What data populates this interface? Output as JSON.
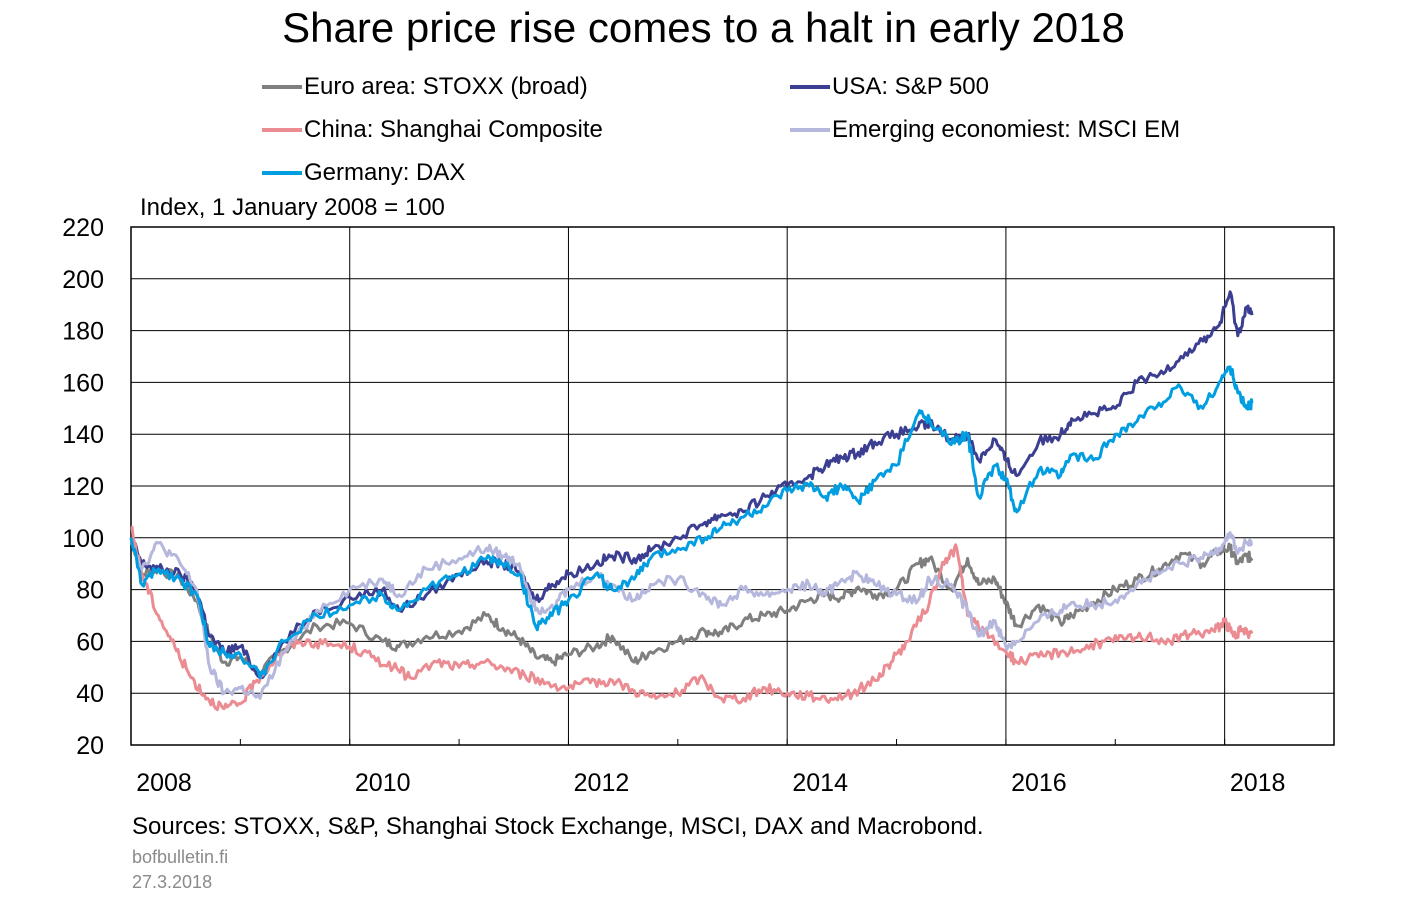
{
  "chart_data": {
    "type": "line",
    "title": "Share price rise comes to a halt in early 2018",
    "unit_label": "Index, 1 January 2008 = 100",
    "xlim": [
      2008,
      2019
    ],
    "ylim": [
      20,
      220
    ],
    "y_ticks": [
      20,
      40,
      60,
      80,
      100,
      120,
      140,
      160,
      180,
      200,
      220
    ],
    "x_tick_labels": [
      "2008",
      "2010",
      "2012",
      "2014",
      "2016",
      "2018"
    ],
    "x_tick_values": [
      2008,
      2010,
      2012,
      2014,
      2016,
      2018
    ],
    "grid": true,
    "legend_placement": "top",
    "series": [
      {
        "name": "Euro area: STOXX (broad)",
        "color": "#7f7f7f",
        "x": [
          2008.0,
          2008.1,
          2008.25,
          2008.45,
          2008.6,
          2008.72,
          2008.85,
          2009.0,
          2009.18,
          2009.4,
          2009.7,
          2010.0,
          2010.3,
          2010.45,
          2010.7,
          2011.0,
          2011.25,
          2011.4,
          2011.55,
          2011.7,
          2011.85,
          2012.0,
          2012.25,
          2012.4,
          2012.6,
          2012.75,
          2013.0,
          2013.25,
          2013.4,
          2013.6,
          2013.8,
          2014.0,
          2014.2,
          2014.35,
          2014.5,
          2014.65,
          2014.8,
          2015.0,
          2015.2,
          2015.3,
          2015.5,
          2015.65,
          2015.75,
          2015.9,
          2016.0,
          2016.1,
          2016.3,
          2016.5,
          2016.6,
          2016.8,
          2017.0,
          2017.2,
          2017.4,
          2017.6,
          2017.8,
          2017.95,
          2018.05,
          2018.12,
          2018.2,
          2018.25
        ],
        "values": [
          100,
          86,
          88,
          84,
          76,
          62,
          52,
          54,
          48,
          57,
          66,
          67,
          60,
          58,
          62,
          64,
          70,
          65,
          61,
          54,
          52,
          55,
          58,
          62,
          52,
          56,
          60,
          64,
          63,
          68,
          70,
          72,
          76,
          78,
          77,
          81,
          78,
          80,
          90,
          92,
          80,
          92,
          82,
          84,
          75,
          66,
          74,
          67,
          70,
          75,
          80,
          84,
          88,
          94,
          90,
          95,
          96,
          90,
          93,
          92
        ]
      },
      {
        "name": "USA: S&P 500",
        "color": "#3c3f91",
        "x": [
          2008.0,
          2008.1,
          2008.25,
          2008.45,
          2008.6,
          2008.72,
          2008.85,
          2009.0,
          2009.18,
          2009.4,
          2009.7,
          2010.0,
          2010.3,
          2010.45,
          2010.7,
          2011.0,
          2011.25,
          2011.4,
          2011.55,
          2011.7,
          2011.85,
          2012.0,
          2012.25,
          2012.4,
          2012.6,
          2012.75,
          2013.0,
          2013.25,
          2013.4,
          2013.6,
          2013.8,
          2014.0,
          2014.2,
          2014.35,
          2014.5,
          2014.65,
          2014.8,
          2015.0,
          2015.2,
          2015.3,
          2015.5,
          2015.65,
          2015.75,
          2015.9,
          2016.0,
          2016.1,
          2016.3,
          2016.5,
          2016.6,
          2016.8,
          2017.0,
          2017.2,
          2017.4,
          2017.6,
          2017.8,
          2017.95,
          2018.05,
          2018.12,
          2018.2,
          2018.25
        ],
        "values": [
          100,
          90,
          88,
          86,
          80,
          62,
          56,
          58,
          46,
          60,
          72,
          77,
          80,
          72,
          78,
          86,
          91,
          90,
          87,
          76,
          82,
          86,
          90,
          93,
          92,
          95,
          100,
          106,
          109,
          110,
          116,
          120,
          124,
          128,
          131,
          133,
          137,
          140,
          143,
          144,
          138,
          140,
          130,
          138,
          130,
          124,
          137,
          140,
          146,
          148,
          150,
          160,
          163,
          170,
          176,
          182,
          195,
          178,
          189,
          186
        ]
      },
      {
        "name": "China: Shanghai Composite",
        "color": "#ea8c92",
        "x": [
          2008.0,
          2008.1,
          2008.25,
          2008.4,
          2008.55,
          2008.7,
          2008.85,
          2009.0,
          2009.15,
          2009.35,
          2009.55,
          2009.75,
          2010.0,
          2010.2,
          2010.4,
          2010.55,
          2010.8,
          2011.0,
          2011.2,
          2011.4,
          2011.6,
          2011.8,
          2012.0,
          2012.2,
          2012.4,
          2012.6,
          2012.8,
          2013.0,
          2013.2,
          2013.4,
          2013.6,
          2013.8,
          2014.0,
          2014.2,
          2014.4,
          2014.6,
          2014.8,
          2014.95,
          2015.1,
          2015.3,
          2015.45,
          2015.55,
          2015.65,
          2015.8,
          2016.0,
          2016.1,
          2016.3,
          2016.5,
          2016.7,
          2016.9,
          2017.1,
          2017.3,
          2017.5,
          2017.7,
          2017.9,
          2018.0,
          2018.08,
          2018.15,
          2018.25
        ],
        "values": [
          104,
          86,
          70,
          58,
          46,
          38,
          34,
          36,
          45,
          55,
          60,
          59,
          58,
          54,
          50,
          46,
          52,
          50,
          52,
          50,
          47,
          44,
          42,
          44,
          45,
          41,
          38,
          40,
          46,
          38,
          38,
          42,
          40,
          39,
          38,
          40,
          45,
          52,
          60,
          75,
          92,
          96,
          70,
          64,
          56,
          52,
          54,
          56,
          57,
          60,
          61,
          62,
          60,
          63,
          64,
          68,
          62,
          64,
          63
        ]
      },
      {
        "name": "Emerging economiest: MSCI EM",
        "color": "#b5b7dc",
        "x": [
          2008.0,
          2008.1,
          2008.25,
          2008.45,
          2008.6,
          2008.72,
          2008.85,
          2009.0,
          2009.18,
          2009.4,
          2009.7,
          2010.0,
          2010.3,
          2010.45,
          2010.7,
          2011.0,
          2011.25,
          2011.4,
          2011.55,
          2011.7,
          2011.85,
          2012.0,
          2012.25,
          2012.4,
          2012.6,
          2012.75,
          2013.0,
          2013.25,
          2013.4,
          2013.6,
          2013.8,
          2014.0,
          2014.2,
          2014.35,
          2014.5,
          2014.65,
          2014.8,
          2015.0,
          2015.2,
          2015.3,
          2015.5,
          2015.65,
          2015.75,
          2015.9,
          2016.0,
          2016.1,
          2016.3,
          2016.5,
          2016.6,
          2016.8,
          2017.0,
          2017.2,
          2017.4,
          2017.6,
          2017.8,
          2017.95,
          2018.05,
          2018.12,
          2018.2,
          2018.25
        ],
        "values": [
          100,
          88,
          98,
          90,
          80,
          50,
          40,
          42,
          38,
          56,
          72,
          80,
          84,
          78,
          88,
          92,
          96,
          93,
          90,
          72,
          74,
          80,
          86,
          82,
          76,
          82,
          84,
          78,
          74,
          80,
          78,
          80,
          82,
          78,
          84,
          86,
          82,
          78,
          76,
          84,
          82,
          72,
          62,
          68,
          58,
          60,
          68,
          72,
          75,
          74,
          76,
          82,
          86,
          90,
          92,
          96,
          102,
          94,
          98,
          97
        ]
      },
      {
        "name": "Germany: DAX",
        "color": "#009ee0",
        "x": [
          2008.0,
          2008.1,
          2008.25,
          2008.45,
          2008.6,
          2008.72,
          2008.85,
          2009.0,
          2009.18,
          2009.4,
          2009.7,
          2010.0,
          2010.3,
          2010.45,
          2010.7,
          2011.0,
          2011.25,
          2011.4,
          2011.55,
          2011.7,
          2011.85,
          2012.0,
          2012.25,
          2012.4,
          2012.6,
          2012.75,
          2013.0,
          2013.25,
          2013.4,
          2013.6,
          2013.8,
          2014.0,
          2014.2,
          2014.35,
          2014.5,
          2014.65,
          2014.8,
          2015.0,
          2015.2,
          2015.3,
          2015.5,
          2015.65,
          2015.75,
          2015.9,
          2016.0,
          2016.1,
          2016.3,
          2016.5,
          2016.6,
          2016.8,
          2017.0,
          2017.2,
          2017.4,
          2017.6,
          2017.8,
          2017.95,
          2018.05,
          2018.12,
          2018.2,
          2018.25
        ],
        "values": [
          100,
          82,
          88,
          84,
          78,
          58,
          56,
          55,
          46,
          60,
          70,
          74,
          78,
          72,
          80,
          86,
          92,
          90,
          86,
          66,
          70,
          76,
          86,
          80,
          84,
          92,
          96,
          100,
          104,
          108,
          112,
          118,
          120,
          116,
          120,
          114,
          122,
          128,
          148,
          146,
          136,
          140,
          116,
          128,
          122,
          110,
          126,
          124,
          132,
          130,
          140,
          145,
          152,
          158,
          150,
          160,
          166,
          156,
          150,
          152
        ]
      }
    ]
  },
  "footer": {
    "source": "Sources: STOXX, S&P, Shanghai Stock Exchange, MSCI, DAX and Macrobond.",
    "site": "bofbulletin.fi",
    "date": "27.3.2018"
  }
}
